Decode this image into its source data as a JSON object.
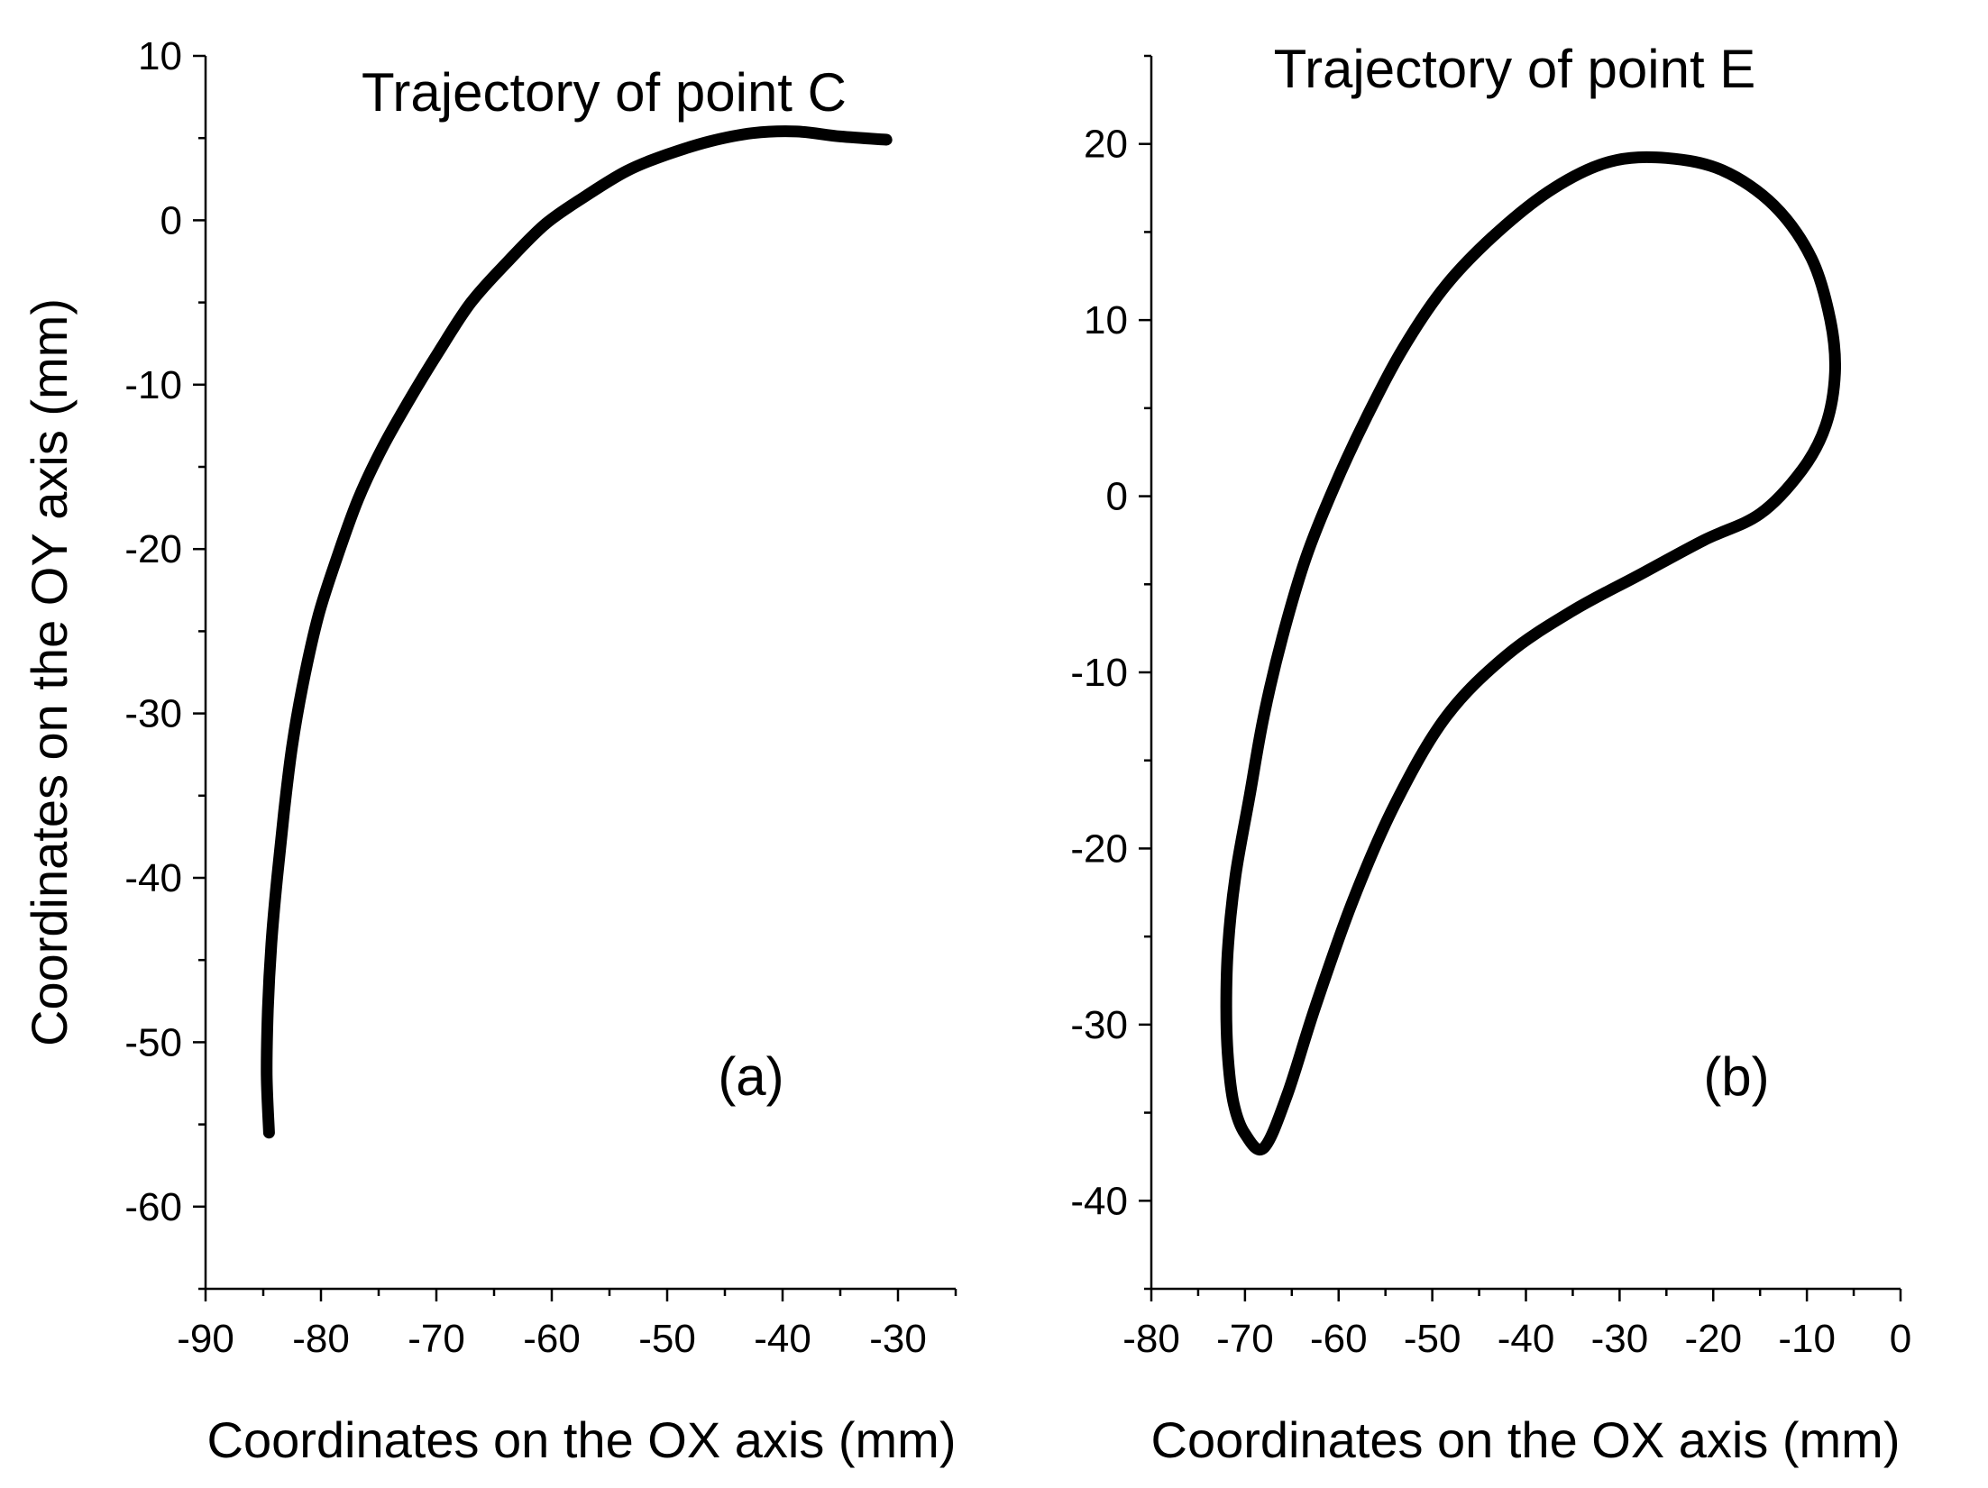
{
  "chart_data": [
    {
      "type": "line",
      "title": "Trajectory of point C",
      "panel_label": "(a)",
      "xlabel": "Coordinates on the OX axis (mm)",
      "ylabel": "Coordinates on the OY axis (mm)",
      "xlim": [
        -90,
        -25
      ],
      "ylim": [
        -65,
        10
      ],
      "xticks": [
        -90,
        -80,
        -70,
        -60,
        -50,
        -40,
        -30
      ],
      "yticks": [
        10,
        0,
        -10,
        -20,
        -30,
        -40,
        -50,
        -60
      ],
      "xtick_labels": [
        "-90",
        "-80",
        "-70",
        "-60",
        "-50",
        "-40",
        "-30"
      ],
      "ytick_labels": [
        "10",
        "0",
        "-10",
        "-20",
        "-30",
        "-40",
        "-50",
        "-60"
      ],
      "grid": false,
      "series": [
        {
          "x": [
            -84.5,
            -84.7,
            -84.6,
            -84.3,
            -83.8,
            -83.2,
            -82.5,
            -81.5,
            -80.2,
            -78.6,
            -76.8,
            -74.8,
            -72.4,
            -69.8,
            -67.0,
            -63.8,
            -60.5,
            -57.0,
            -53.5,
            -50.0,
            -46.3,
            -42.6,
            -38.8,
            -35.0,
            -31.0
          ],
          "y": [
            -55.5,
            -52.0,
            -48.0,
            -44.0,
            -40.0,
            -36.0,
            -32.0,
            -28.0,
            -24.0,
            -20.5,
            -17.0,
            -14.0,
            -11.0,
            -8.0,
            -5.0,
            -2.5,
            -0.2,
            1.5,
            3.0,
            4.0,
            4.8,
            5.3,
            5.4,
            5.1,
            4.9
          ],
          "color": "#000000"
        }
      ]
    },
    {
      "type": "line",
      "title": "Trajectory of point E",
      "panel_label": "(b)",
      "xlabel": "Coordinates on the OX axis (mm)",
      "ylabel": "",
      "xlim": [
        -80,
        0
      ],
      "ylim": [
        -45,
        25
      ],
      "xticks": [
        -80,
        -70,
        -60,
        -50,
        -40,
        -30,
        -20,
        -10,
        0
      ],
      "yticks": [
        20,
        10,
        0,
        -10,
        -20,
        -30,
        -40
      ],
      "xtick_labels": [
        "-80",
        "-70",
        "-60",
        "-50",
        "-40",
        "-30",
        "-20",
        "-10",
        "0"
      ],
      "ytick_labels": [
        "20",
        "10",
        "0",
        "-10",
        "-20",
        "-30",
        "-40"
      ],
      "grid": false,
      "series": [
        {
          "closed": true,
          "x": [
            -68.0,
            -65.5,
            -62.5,
            -58.5,
            -54.0,
            -48.5,
            -42.0,
            -35.0,
            -28.0,
            -21.0,
            -15.0,
            -10.5,
            -8.0,
            -7.0,
            -7.5,
            -9.5,
            -13.5,
            -19.0,
            -25.0,
            -31.0,
            -37.0,
            -43.0,
            -48.5,
            -53.0,
            -57.0,
            -60.5,
            -63.5,
            -66.0,
            -68.0,
            -69.5,
            -71.0,
            -71.8,
            -72.0,
            -71.8,
            -71.2,
            -70.0,
            -68.0
          ],
          "y": [
            -37.0,
            -34.0,
            -29.0,
            -23.0,
            -17.5,
            -12.5,
            -9.0,
            -6.5,
            -4.5,
            -2.5,
            -1.0,
            1.5,
            4.0,
            7.0,
            10.0,
            13.5,
            16.5,
            18.5,
            19.2,
            19.0,
            17.5,
            15.0,
            12.0,
            8.5,
            4.5,
            0.5,
            -3.5,
            -8.0,
            -12.5,
            -17.0,
            -21.5,
            -25.5,
            -29.0,
            -32.0,
            -34.5,
            -36.2,
            -37.0
          ],
          "color": "#000000"
        }
      ]
    }
  ]
}
